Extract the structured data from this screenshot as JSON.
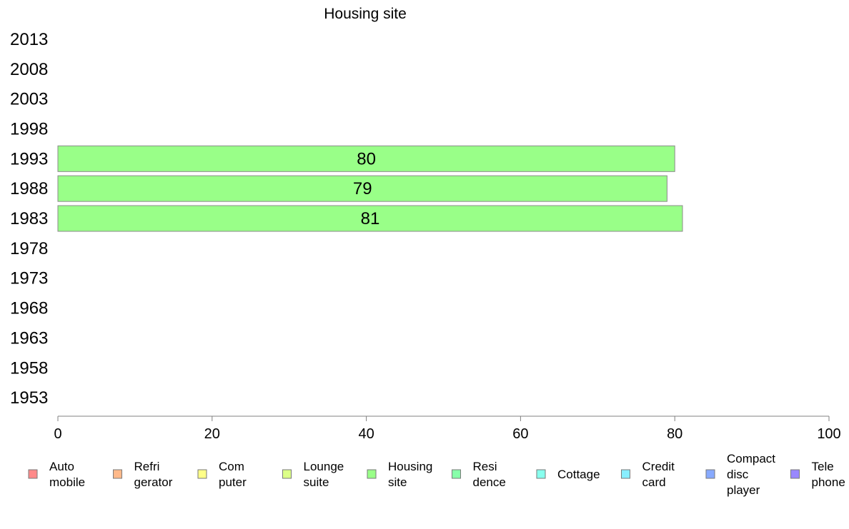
{
  "chart_data": {
    "type": "bar",
    "orientation": "horizontal",
    "title": "Housing site",
    "xlabel": "",
    "ylabel": "",
    "categories": [
      "2013",
      "2008",
      "2003",
      "1998",
      "1993",
      "1988",
      "1983",
      "1978",
      "1973",
      "1968",
      "1963",
      "1958",
      "1953"
    ],
    "series": [
      {
        "name": "Housing site",
        "color": "#99ff88",
        "values": [
          null,
          null,
          null,
          null,
          80,
          79,
          81,
          null,
          null,
          null,
          null,
          null,
          null
        ]
      }
    ],
    "xlim": [
      0,
      100
    ],
    "xticks": [
      "0",
      "20",
      "40",
      "60",
      "80",
      "100"
    ],
    "grid": false,
    "legend_position": "bottom",
    "legend": [
      {
        "label": [
          "Auto",
          "mobile"
        ],
        "color": "#ff8a8a"
      },
      {
        "label": [
          "Refri",
          "gerator"
        ],
        "color": "#ffb98a"
      },
      {
        "label": [
          "Com",
          "puter"
        ],
        "color": "#ffff88"
      },
      {
        "label": [
          "Lounge",
          "suite"
        ],
        "color": "#dcff88"
      },
      {
        "label": [
          "Housing",
          "site"
        ],
        "color": "#99ff88"
      },
      {
        "label": [
          "Resi",
          "dence"
        ],
        "color": "#88ffaa"
      },
      {
        "label": [
          "Cottage"
        ],
        "color": "#88ffee"
      },
      {
        "label": [
          "Credit",
          "card"
        ],
        "color": "#88eeff"
      },
      {
        "label": [
          "Compact",
          "disc",
          "player"
        ],
        "color": "#88aaff"
      },
      {
        "label": [
          "Tele",
          "phone"
        ],
        "color": "#9988ff"
      }
    ]
  }
}
